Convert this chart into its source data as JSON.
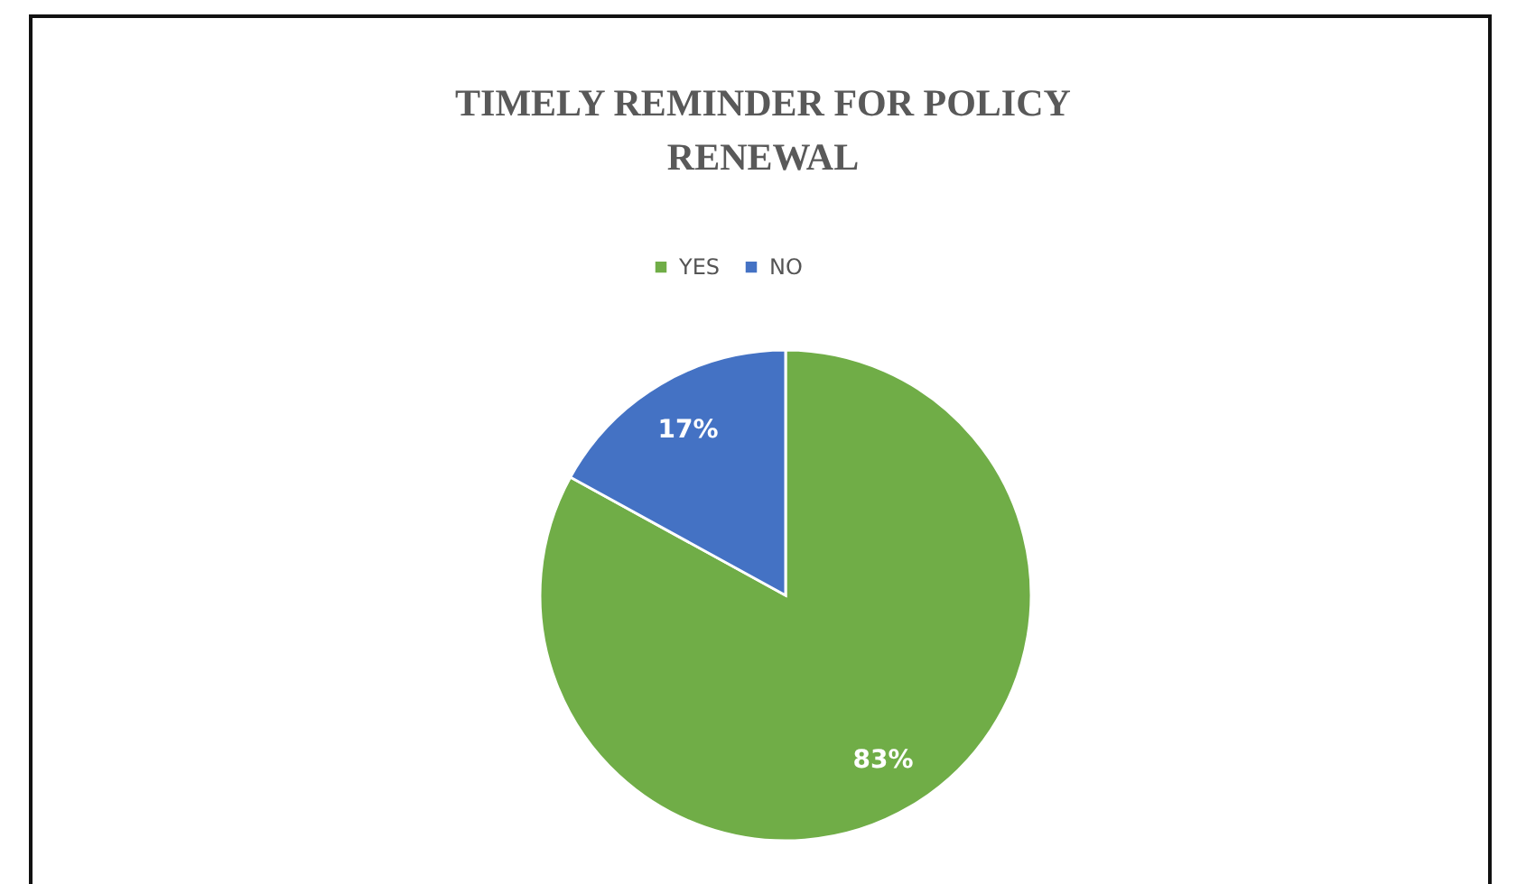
{
  "chart_data": {
    "type": "pie",
    "title": "TIMELY REMINDER FOR POLICY RENEWAL",
    "categories": [
      "YES",
      "NO"
    ],
    "values": [
      83,
      17
    ],
    "colors": [
      "#70ad47",
      "#4472c4"
    ],
    "value_labels": [
      "83%",
      "17%"
    ],
    "legend": "top"
  }
}
